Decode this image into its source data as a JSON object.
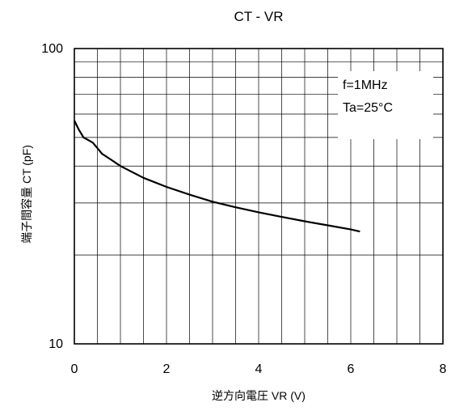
{
  "chart_data": {
    "type": "line",
    "title": "CT - VR",
    "xlabel": "逆方向電圧 VR (V)",
    "ylabel": "端子間容量 CT (pF)",
    "xlim": [
      0,
      8
    ],
    "ylim": [
      10,
      100
    ],
    "y_scale": "log",
    "grid": true,
    "x_ticks": [
      0,
      2,
      4,
      6,
      8
    ],
    "x_tick_labels": [
      "0",
      "2",
      "4",
      "6",
      "8"
    ],
    "y_ticks": [
      10,
      100
    ],
    "y_tick_labels": [
      "10",
      "100"
    ],
    "annotations": [
      "f=1MHz",
      "Ta=25°C"
    ],
    "series": [
      {
        "color": "#000000",
        "x": [
          0,
          0.1,
          0.2,
          0.3,
          0.4,
          0.5,
          0.6,
          0.8,
          1.0,
          1.5,
          2.0,
          2.5,
          3.0,
          3.5,
          4.0,
          4.5,
          5.0,
          5.5,
          6.0,
          6.2
        ],
        "y": [
          57,
          53,
          50,
          49,
          48,
          46,
          44,
          42,
          40,
          36.5,
          34,
          32,
          30.3,
          29,
          27.9,
          26.9,
          26,
          25.2,
          24.4,
          24
        ]
      }
    ]
  }
}
